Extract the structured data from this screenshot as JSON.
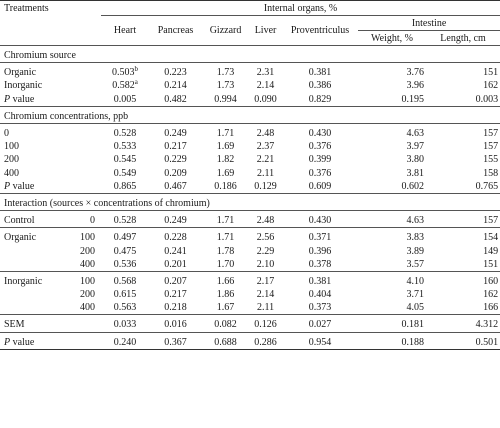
{
  "header": {
    "treatments": "Treatments",
    "internal_organs": "Internal organs, %",
    "heart": "Heart",
    "pancreas": "Pancreas",
    "gizzard": "Gizzard",
    "liver": "Liver",
    "proventriculus": "Proventriculus",
    "intestine": "Intestine",
    "weight": "Weight, %",
    "length": "Length, cm"
  },
  "sections": {
    "source": "Chromium source",
    "concentrations": "Chromium concentrations, ppb",
    "interaction": "Interaction (sources × concentrations of chromium)"
  },
  "source_rows": [
    {
      "label": "Organic",
      "heart": "0.503",
      "heart_sup": "b",
      "pancreas": "0.223",
      "gizzard": "1.73",
      "liver": "2.31",
      "prov": "0.381",
      "weight": "3.76",
      "length": "151"
    },
    {
      "label": "Inorganic",
      "heart": "0.582",
      "heart_sup": "a",
      "pancreas": "0.214",
      "gizzard": "1.73",
      "liver": "2.14",
      "prov": "0.386",
      "weight": "3.96",
      "length": "162"
    },
    {
      "label_p": "P",
      "label_rest": " value",
      "heart": "0.005",
      "heart_sup": "",
      "pancreas": "0.482",
      "gizzard": "0.994",
      "liver": "0.090",
      "prov": "0.829",
      "weight": "0.195",
      "length": "0.003"
    }
  ],
  "conc_rows": [
    {
      "label": "0",
      "heart": "0.528",
      "pancreas": "0.249",
      "gizzard": "1.71",
      "liver": "2.48",
      "prov": "0.430",
      "weight": "4.63",
      "length": "157"
    },
    {
      "label": "100",
      "heart": "0.533",
      "pancreas": "0.217",
      "gizzard": "1.69",
      "liver": "2.37",
      "prov": "0.376",
      "weight": "3.97",
      "length": "157"
    },
    {
      "label": "200",
      "heart": "0.545",
      "pancreas": "0.229",
      "gizzard": "1.82",
      "liver": "2.21",
      "prov": "0.399",
      "weight": "3.80",
      "length": "155"
    },
    {
      "label": "400",
      "heart": "0.549",
      "pancreas": "0.209",
      "gizzard": "1.69",
      "liver": "2.11",
      "prov": "0.376",
      "weight": "3.81",
      "length": "158"
    },
    {
      "label_p": "P",
      "label_rest": " value",
      "heart": "0.865",
      "pancreas": "0.467",
      "gizzard": "0.186",
      "liver": "0.129",
      "prov": "0.609",
      "weight": "0.602",
      "length": "0.765"
    }
  ],
  "control_row": {
    "label": "Control",
    "level": "0",
    "heart": "0.528",
    "pancreas": "0.249",
    "gizzard": "1.71",
    "liver": "2.48",
    "prov": "0.430",
    "weight": "4.63",
    "length": "157"
  },
  "organic_rows": [
    {
      "label": "Organic",
      "level": "100",
      "heart": "0.497",
      "pancreas": "0.228",
      "gizzard": "1.71",
      "liver": "2.56",
      "prov": "0.371",
      "weight": "3.83",
      "length": "154"
    },
    {
      "label": "",
      "level": "200",
      "heart": "0.475",
      "pancreas": "0.241",
      "gizzard": "1.78",
      "liver": "2.29",
      "prov": "0.396",
      "weight": "3.89",
      "length": "149"
    },
    {
      "label": "",
      "level": "400",
      "heart": "0.536",
      "pancreas": "0.201",
      "gizzard": "1.70",
      "liver": "2.10",
      "prov": "0.378",
      "weight": "3.57",
      "length": "151"
    }
  ],
  "inorganic_rows": [
    {
      "label": "Inorganic",
      "level": "100",
      "heart": "0.568",
      "pancreas": "0.207",
      "gizzard": "1.66",
      "liver": "2.17",
      "prov": "0.381",
      "weight": "4.10",
      "length": "160"
    },
    {
      "label": "",
      "level": "200",
      "heart": "0.615",
      "pancreas": "0.217",
      "gizzard": "1.86",
      "liver": "2.14",
      "prov": "0.404",
      "weight": "3.71",
      "length": "162"
    },
    {
      "label": "",
      "level": "400",
      "heart": "0.563",
      "pancreas": "0.218",
      "gizzard": "1.67",
      "liver": "2.11",
      "prov": "0.373",
      "weight": "4.05",
      "length": "166"
    }
  ],
  "sem_row": {
    "label": "SEM",
    "heart": "0.033",
    "pancreas": "0.016",
    "gizzard": "0.082",
    "liver": "0.126",
    "prov": "0.027",
    "weight": "0.181",
    "length": "4.312"
  },
  "final_p_row": {
    "label_p": "P",
    "label_rest": " value",
    "heart": "0.240",
    "pancreas": "0.367",
    "gizzard": "0.688",
    "liver": "0.286",
    "prov": "0.954",
    "weight": "0.188",
    "length": "0.501"
  }
}
